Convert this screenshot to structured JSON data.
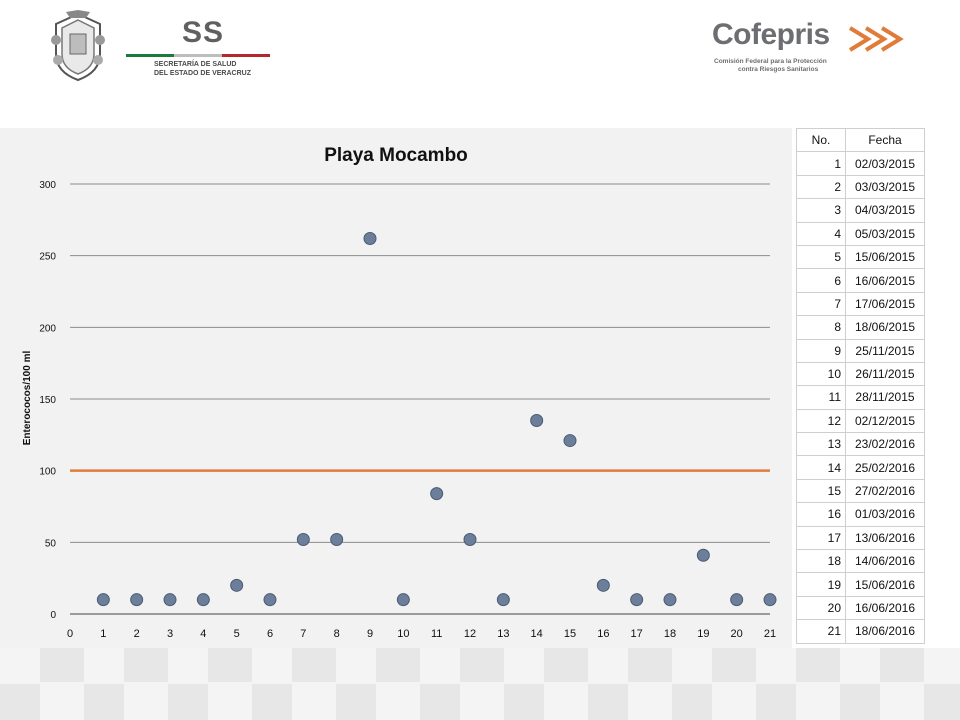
{
  "header": {
    "ss_mark": "SS",
    "ss_line1": "SECRETARÍA DE SALUD",
    "ss_line2": "DEL ESTADO DE VERACRUZ",
    "cofepris_name": "Cofepris",
    "cofepris_line1": "Comisión Federal para la Protección",
    "cofepris_line2": "contra Riesgos Sanitarios"
  },
  "colors": {
    "panel_background": "#f2f2f2",
    "marker_fill": "#6b7f9b",
    "marker_stroke": "#4a5a72",
    "threshold_line": "#e07b39",
    "grid_line": "#8c8c8c"
  },
  "chart_data": {
    "type": "scatter",
    "title": "Playa Mocambo",
    "ylabel": "Enterococos/100 ml",
    "xlabel": "",
    "xlim": [
      0,
      21
    ],
    "ylim": [
      0,
      300
    ],
    "x_ticks": [
      0,
      1,
      2,
      3,
      4,
      5,
      6,
      7,
      8,
      9,
      10,
      11,
      12,
      13,
      14,
      15,
      16,
      17,
      18,
      19,
      20,
      21
    ],
    "y_ticks": [
      0,
      50,
      100,
      150,
      200,
      250,
      300
    ],
    "grid": "horizontal",
    "points": [
      {
        "x": 1,
        "y": 10
      },
      {
        "x": 2,
        "y": 10
      },
      {
        "x": 3,
        "y": 10
      },
      {
        "x": 4,
        "y": 10
      },
      {
        "x": 5,
        "y": 20
      },
      {
        "x": 6,
        "y": 10
      },
      {
        "x": 7,
        "y": 52
      },
      {
        "x": 8,
        "y": 52
      },
      {
        "x": 9,
        "y": 262
      },
      {
        "x": 10,
        "y": 10
      },
      {
        "x": 11,
        "y": 84
      },
      {
        "x": 12,
        "y": 52
      },
      {
        "x": 13,
        "y": 10
      },
      {
        "x": 14,
        "y": 135
      },
      {
        "x": 15,
        "y": 121
      },
      {
        "x": 16,
        "y": 20
      },
      {
        "x": 17,
        "y": 10
      },
      {
        "x": 18,
        "y": 10
      },
      {
        "x": 19,
        "y": 41
      },
      {
        "x": 20,
        "y": 10
      },
      {
        "x": 21,
        "y": 10
      }
    ],
    "threshold": {
      "y": 100,
      "x_from": 0,
      "x_to": 21
    }
  },
  "table": {
    "headers": {
      "no": "No.",
      "fecha": "Fecha"
    },
    "rows": [
      {
        "no": "1",
        "fecha": "02/03/2015"
      },
      {
        "no": "2",
        "fecha": "03/03/2015"
      },
      {
        "no": "3",
        "fecha": "04/03/2015"
      },
      {
        "no": "4",
        "fecha": "05/03/2015"
      },
      {
        "no": "5",
        "fecha": "15/06/2015"
      },
      {
        "no": "6",
        "fecha": "16/06/2015"
      },
      {
        "no": "7",
        "fecha": "17/06/2015"
      },
      {
        "no": "8",
        "fecha": "18/06/2015"
      },
      {
        "no": "9",
        "fecha": "25/11/2015"
      },
      {
        "no": "10",
        "fecha": "26/11/2015"
      },
      {
        "no": "11",
        "fecha": "28/11/2015"
      },
      {
        "no": "12",
        "fecha": "02/12/2015"
      },
      {
        "no": "13",
        "fecha": "23/02/2016"
      },
      {
        "no": "14",
        "fecha": "25/02/2016"
      },
      {
        "no": "15",
        "fecha": "27/02/2016"
      },
      {
        "no": "16",
        "fecha": "01/03/2016"
      },
      {
        "no": "17",
        "fecha": "13/06/2016"
      },
      {
        "no": "18",
        "fecha": "14/06/2016"
      },
      {
        "no": "19",
        "fecha": "15/06/2016"
      },
      {
        "no": "20",
        "fecha": "16/06/2016"
      },
      {
        "no": "21",
        "fecha": "18/06/2016"
      }
    ]
  }
}
